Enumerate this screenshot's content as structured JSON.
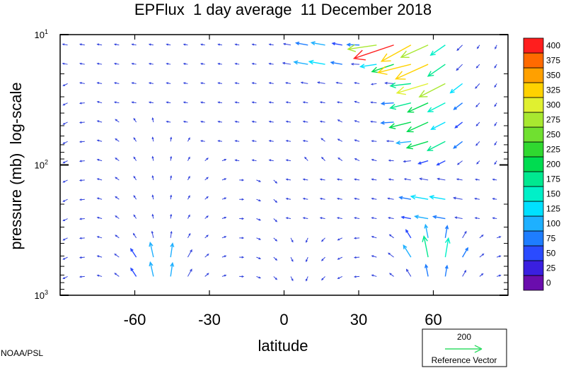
{
  "chart_data": {
    "type": "quiver",
    "title": "EPFlux  1 day average  11 December 2018",
    "xlabel": "latitude",
    "ylabel": "pressure (mb)  log-scale",
    "xlim": [
      -90,
      90
    ],
    "ylim": [
      1000,
      10
    ],
    "yscale": "log",
    "x_ticks": [
      -60,
      -30,
      0,
      30,
      60
    ],
    "x_tick_labels": [
      "-60",
      "-30",
      "0",
      "30",
      "60"
    ],
    "y_ticks": [
      10,
      100,
      1000
    ],
    "y_tick_labels": [
      {
        "base": "10",
        "exp": "1"
      },
      {
        "base": "10",
        "exp": "2"
      },
      {
        "base": "10",
        "exp": "3"
      }
    ],
    "colorbar": {
      "levels": [
        0,
        25,
        50,
        75,
        100,
        125,
        150,
        175,
        200,
        225,
        250,
        275,
        300,
        325,
        350,
        375,
        400
      ],
      "labels": [
        "0",
        "25",
        "50",
        "75",
        "100",
        "125",
        "150",
        "175",
        "200",
        "225",
        "250",
        "275",
        "300",
        "325",
        "350",
        "375",
        "400"
      ],
      "colors": [
        "#6a0dad",
        "#3a1fe0",
        "#2a4bff",
        "#1e7dff",
        "#1eb0ff",
        "#00e0ff",
        "#00f0c8",
        "#00e890",
        "#00dc50",
        "#30d830",
        "#70e030",
        "#a8e830",
        "#e0f030",
        "#ffd200",
        "#ffa000",
        "#ff6a00",
        "#ff1e1e"
      ]
    },
    "reference_vector": {
      "magnitude": "200",
      "label": "Reference Vector",
      "color": "#33dd66"
    },
    "arrow_color_default": "#3344dd",
    "notable_flux": [
      {
        "lat": 45,
        "p": 12,
        "mag": 420
      },
      {
        "lat": 55,
        "p": 15,
        "mag": 400
      },
      {
        "lat": 60,
        "p": 25,
        "mag": 330
      },
      {
        "lat": 55,
        "p": 40,
        "mag": 260
      },
      {
        "lat": 60,
        "p": 60,
        "mag": 220
      },
      {
        "lat": 60,
        "p": 200,
        "mag": 160
      },
      {
        "lat": 60,
        "p": 500,
        "mag": 200
      },
      {
        "lat": -50,
        "p": 600,
        "mag": 150
      },
      {
        "lat": 15,
        "p": 15,
        "mag": 150
      }
    ]
  },
  "credit": "NOAA/PSL"
}
